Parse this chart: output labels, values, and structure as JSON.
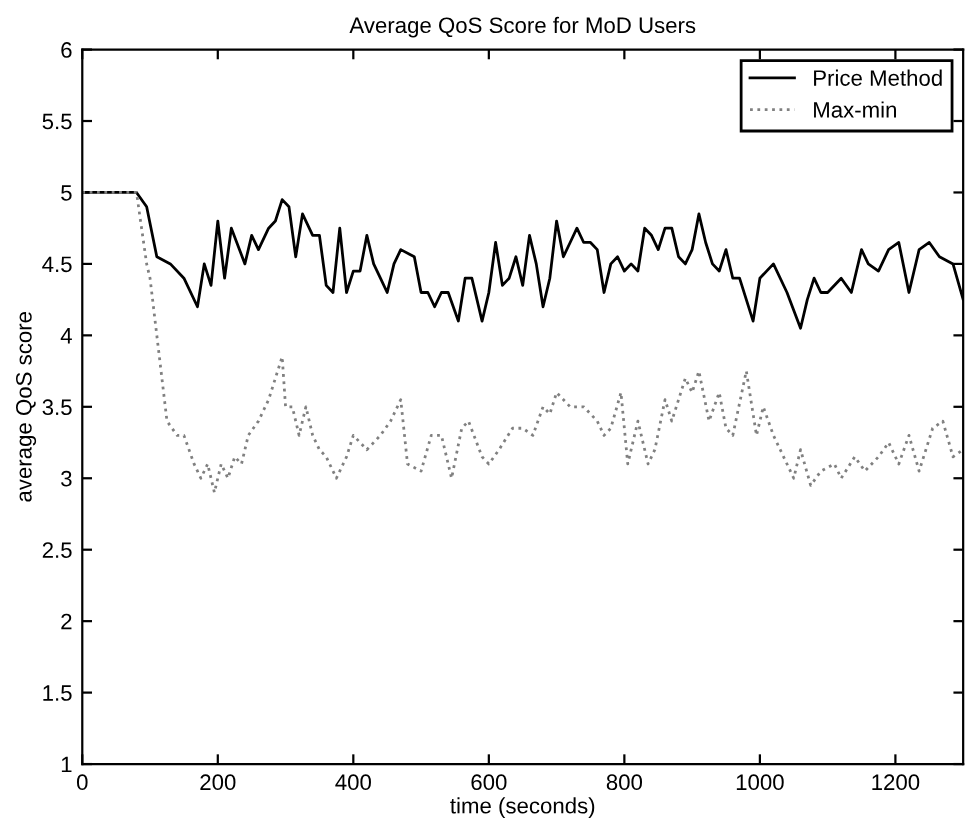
{
  "chart_data": {
    "type": "line",
    "title": "Average QoS Score for MoD Users",
    "xlabel": "time (seconds)",
    "ylabel": "average QoS score",
    "xlim": [
      0,
      1300
    ],
    "ylim": [
      1,
      6
    ],
    "xticks": [
      0,
      200,
      400,
      600,
      800,
      1000,
      1200
    ],
    "yticks": [
      1,
      1.5,
      2,
      2.5,
      3,
      3.5,
      4,
      4.5,
      5,
      5.5,
      6
    ],
    "grid": false,
    "legend": "top right",
    "marker": "none",
    "series": [
      {
        "name": "Price Method",
        "color": "#000000",
        "line_style": "solid",
        "x": [
          0,
          80,
          95,
          110,
          130,
          150,
          170,
          180,
          190,
          200,
          210,
          220,
          240,
          250,
          260,
          275,
          285,
          295,
          305,
          315,
          325,
          340,
          350,
          360,
          370,
          380,
          390,
          400,
          410,
          420,
          430,
          440,
          450,
          460,
          470,
          490,
          500,
          510,
          520,
          530,
          540,
          555,
          565,
          575,
          590,
          600,
          610,
          620,
          630,
          640,
          650,
          660,
          670,
          680,
          690,
          700,
          710,
          720,
          730,
          740,
          750,
          760,
          770,
          780,
          790,
          800,
          810,
          820,
          830,
          840,
          850,
          860,
          870,
          880,
          890,
          900,
          910,
          920,
          930,
          940,
          950,
          960,
          970,
          990,
          1000,
          1020,
          1040,
          1060,
          1070,
          1080,
          1090,
          1100,
          1120,
          1135,
          1150,
          1160,
          1175,
          1190,
          1205,
          1220,
          1235,
          1250,
          1265,
          1285,
          1300
        ],
        "values": [
          5.0,
          5.0,
          4.9,
          4.55,
          4.5,
          4.4,
          4.2,
          4.5,
          4.35,
          4.8,
          4.4,
          4.75,
          4.5,
          4.7,
          4.6,
          4.75,
          4.8,
          4.95,
          4.9,
          4.55,
          4.85,
          4.7,
          4.7,
          4.35,
          4.3,
          4.75,
          4.3,
          4.45,
          4.45,
          4.7,
          4.5,
          4.4,
          4.3,
          4.5,
          4.6,
          4.55,
          4.3,
          4.3,
          4.2,
          4.3,
          4.3,
          4.1,
          4.4,
          4.4,
          4.1,
          4.3,
          4.65,
          4.35,
          4.4,
          4.55,
          4.35,
          4.7,
          4.5,
          4.2,
          4.4,
          4.8,
          4.55,
          4.65,
          4.75,
          4.65,
          4.65,
          4.6,
          4.3,
          4.5,
          4.55,
          4.45,
          4.5,
          4.45,
          4.75,
          4.7,
          4.6,
          4.75,
          4.75,
          4.55,
          4.5,
          4.6,
          4.85,
          4.65,
          4.5,
          4.45,
          4.6,
          4.4,
          4.4,
          4.1,
          4.4,
          4.5,
          4.3,
          4.05,
          4.25,
          4.4,
          4.3,
          4.3,
          4.4,
          4.3,
          4.6,
          4.5,
          4.45,
          4.6,
          4.65,
          4.3,
          4.6,
          4.65,
          4.55,
          4.5,
          4.25
        ]
      },
      {
        "name": "Max-min",
        "color": "#808080",
        "line_style": "dotted",
        "x": [
          0,
          80,
          95,
          100,
          110,
          125,
          140,
          150,
          165,
          175,
          185,
          195,
          205,
          215,
          225,
          235,
          245,
          260,
          275,
          285,
          295,
          300,
          310,
          320,
          330,
          340,
          350,
          360,
          375,
          390,
          400,
          420,
          440,
          455,
          470,
          480,
          500,
          515,
          530,
          545,
          560,
          570,
          590,
          600,
          615,
          635,
          650,
          665,
          680,
          690,
          700,
          720,
          740,
          760,
          770,
          780,
          795,
          805,
          820,
          835,
          845,
          860,
          870,
          890,
          900,
          910,
          925,
          940,
          950,
          960,
          980,
          995,
          1005,
          1020,
          1035,
          1050,
          1060,
          1075,
          1090,
          1110,
          1120,
          1140,
          1155,
          1175,
          1190,
          1205,
          1220,
          1235,
          1255,
          1270,
          1285,
          1300
        ],
        "values": [
          5.0,
          5.0,
          4.5,
          4.4,
          4.0,
          3.4,
          3.3,
          3.3,
          3.1,
          3.0,
          3.1,
          2.9,
          3.1,
          3.0,
          3.15,
          3.1,
          3.3,
          3.4,
          3.55,
          3.7,
          3.85,
          3.5,
          3.5,
          3.3,
          3.5,
          3.3,
          3.2,
          3.15,
          3.0,
          3.15,
          3.3,
          3.2,
          3.3,
          3.4,
          3.55,
          3.1,
          3.05,
          3.3,
          3.3,
          3.0,
          3.35,
          3.4,
          3.15,
          3.1,
          3.2,
          3.35,
          3.35,
          3.3,
          3.5,
          3.45,
          3.6,
          3.5,
          3.5,
          3.4,
          3.3,
          3.35,
          3.6,
          3.1,
          3.4,
          3.1,
          3.2,
          3.55,
          3.4,
          3.7,
          3.6,
          3.75,
          3.4,
          3.6,
          3.35,
          3.3,
          3.75,
          3.3,
          3.5,
          3.3,
          3.15,
          3.0,
          3.2,
          2.95,
          3.05,
          3.1,
          3.0,
          3.15,
          3.05,
          3.15,
          3.25,
          3.1,
          3.3,
          3.05,
          3.35,
          3.4,
          3.15,
          3.2
        ]
      }
    ]
  }
}
